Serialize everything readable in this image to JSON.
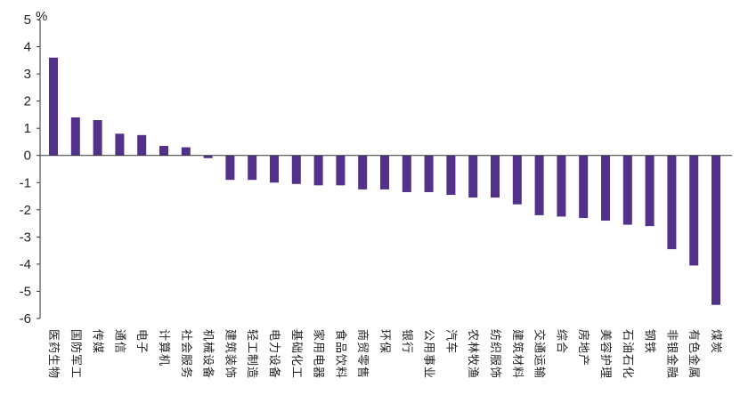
{
  "chart_data": {
    "type": "bar",
    "unit": "%",
    "title": "",
    "xlabel": "",
    "ylabel": "",
    "ylim": [
      -6,
      5
    ],
    "yticks": [
      "5",
      "4",
      "3",
      "2",
      "1",
      "0",
      "-1",
      "-2",
      "-3",
      "-4",
      "-5",
      "-6"
    ],
    "bar_color": "#52318a",
    "categories": [
      "医药生物",
      "国防军工",
      "传媒",
      "通信",
      "电子",
      "计算机",
      "社会服务",
      "机械设备",
      "建筑装饰",
      "轻工制造",
      "电力设备",
      "基础化工",
      "家用电器",
      "食品饮料",
      "商贸零售",
      "环保",
      "银行",
      "公用事业",
      "汽车",
      "农林牧渔",
      "纺织服饰",
      "建筑材料",
      "交通运输",
      "综合",
      "房地产",
      "美容护理",
      "石油石化",
      "钢铁",
      "非银金融",
      "有色金属",
      "煤炭"
    ],
    "values": [
      3.6,
      1.4,
      1.3,
      0.8,
      0.75,
      0.35,
      0.3,
      -0.1,
      -0.9,
      -0.9,
      -1.0,
      -1.05,
      -1.1,
      -1.1,
      -1.25,
      -1.25,
      -1.35,
      -1.35,
      -1.45,
      -1.55,
      -1.55,
      -1.8,
      -2.2,
      -2.25,
      -2.3,
      -2.4,
      -2.55,
      -2.6,
      -3.45,
      -4.05,
      -5.5
    ]
  }
}
